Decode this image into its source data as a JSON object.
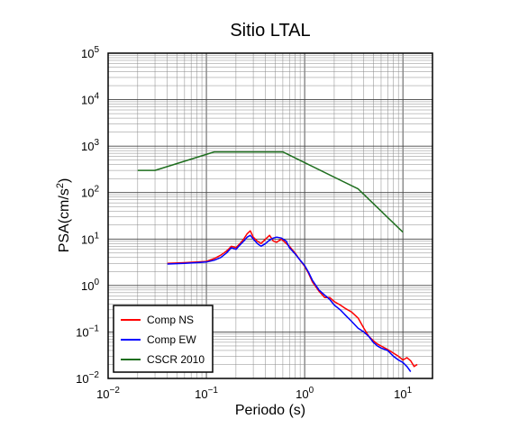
{
  "chart_data": {
    "type": "line",
    "title": "Sitio LTAL",
    "xlabel": "Periodo (s)",
    "ylabel": "PSA(cm/s²)",
    "ylabel_parts": {
      "pre": "PSA(cm/s",
      "sup": "2",
      "post": ")"
    },
    "x_scale": "log",
    "y_scale": "log",
    "xlim": [
      0.01,
      20
    ],
    "ylim": [
      0.01,
      100000
    ],
    "x_ticks": [
      {
        "base": "10",
        "exp": "−2"
      },
      {
        "base": "10",
        "exp": "−1"
      },
      {
        "base": "10",
        "exp": "0"
      },
      {
        "base": "10",
        "exp": "1"
      }
    ],
    "y_ticks": [
      {
        "base": "10",
        "exp": "−2"
      },
      {
        "base": "10",
        "exp": "−1"
      },
      {
        "base": "10",
        "exp": "0"
      },
      {
        "base": "10",
        "exp": "1"
      },
      {
        "base": "10",
        "exp": "2"
      },
      {
        "base": "10",
        "exp": "3"
      },
      {
        "base": "10",
        "exp": "4"
      },
      {
        "base": "10",
        "exp": "5"
      }
    ],
    "grid": true,
    "legend_position": "bottom-left",
    "series": [
      {
        "name": "Comp NS",
        "color": "#ff0000",
        "x": [
          0.04,
          0.06,
          0.08,
          0.1,
          0.12,
          0.14,
          0.16,
          0.18,
          0.2,
          0.22,
          0.24,
          0.26,
          0.28,
          0.3,
          0.33,
          0.36,
          0.4,
          0.44,
          0.48,
          0.52,
          0.58,
          0.65,
          0.7,
          0.8,
          0.9,
          1.0,
          1.1,
          1.2,
          1.4,
          1.6,
          1.8,
          2.0,
          2.3,
          2.6,
          3.0,
          3.5,
          4.0,
          4.5,
          5.0,
          5.5,
          6.0,
          7.0,
          8.0,
          9.0,
          10.0,
          11.0,
          12.0,
          13.0,
          14.0
        ],
        "y": [
          3.0,
          3.1,
          3.2,
          3.3,
          3.8,
          4.5,
          5.5,
          7.0,
          6.5,
          8.0,
          10.0,
          13.0,
          15.0,
          11.0,
          9.0,
          8.0,
          10.0,
          12.0,
          9.0,
          8.5,
          10.0,
          8.0,
          7.0,
          5.0,
          3.5,
          2.6,
          1.8,
          1.2,
          0.75,
          0.55,
          0.55,
          0.45,
          0.38,
          0.32,
          0.27,
          0.2,
          0.12,
          0.08,
          0.065,
          0.055,
          0.05,
          0.042,
          0.035,
          0.03,
          0.025,
          0.028,
          0.024,
          0.018,
          0.02
        ]
      },
      {
        "name": "Comp EW",
        "color": "#0000ff",
        "x": [
          0.04,
          0.06,
          0.08,
          0.1,
          0.12,
          0.14,
          0.16,
          0.18,
          0.2,
          0.22,
          0.24,
          0.26,
          0.28,
          0.3,
          0.33,
          0.36,
          0.4,
          0.44,
          0.48,
          0.52,
          0.58,
          0.65,
          0.7,
          0.8,
          0.9,
          1.0,
          1.1,
          1.2,
          1.4,
          1.6,
          1.8,
          2.0,
          2.3,
          2.6,
          3.0,
          3.5,
          4.0,
          4.5,
          5.0,
          5.5,
          6.0,
          7.0,
          8.0,
          9.0,
          10.0,
          11.0,
          12.0
        ],
        "y": [
          2.9,
          3.0,
          3.1,
          3.2,
          3.5,
          4.0,
          5.0,
          6.5,
          6.0,
          7.5,
          9.0,
          11.0,
          12.0,
          10.0,
          8.0,
          7.0,
          8.0,
          9.5,
          10.5,
          11.0,
          10.5,
          9.0,
          6.5,
          4.8,
          3.5,
          2.7,
          1.9,
          1.3,
          0.8,
          0.62,
          0.5,
          0.38,
          0.3,
          0.23,
          0.17,
          0.12,
          0.1,
          0.08,
          0.06,
          0.05,
          0.045,
          0.04,
          0.03,
          0.025,
          0.022,
          0.018,
          0.014
        ]
      },
      {
        "name": "CSCR 2010",
        "color": "#1e6e1e",
        "x": [
          0.02,
          0.03,
          0.12,
          0.6,
          3.5,
          10.0
        ],
        "y": [
          300,
          300,
          750,
          750,
          120,
          14
        ]
      }
    ]
  }
}
